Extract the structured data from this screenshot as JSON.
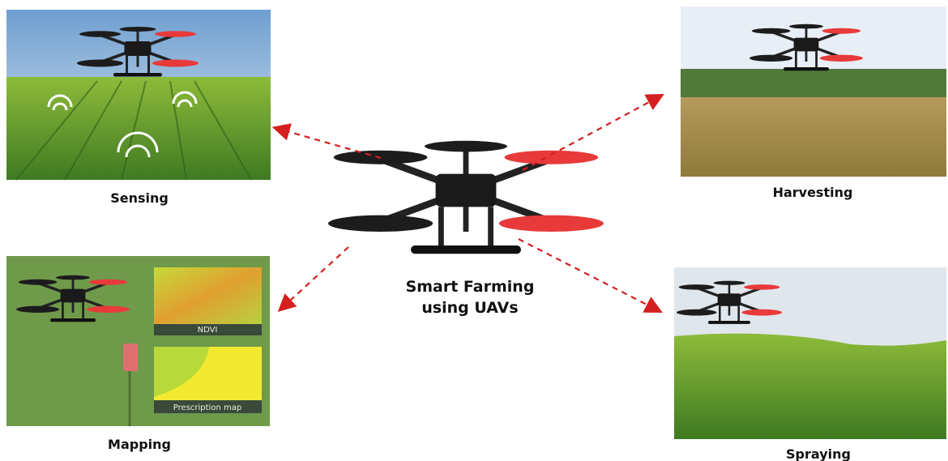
{
  "center": {
    "lines": [
      "Smart Farming",
      "using UAVs"
    ]
  },
  "panels": [
    {
      "label": "Sensing"
    },
    {
      "label": "Harvesting"
    },
    {
      "label": "Mapping"
    },
    {
      "label": "Spraying"
    }
  ],
  "mapping_insets": [
    "NDVI",
    "Prescription map"
  ]
}
